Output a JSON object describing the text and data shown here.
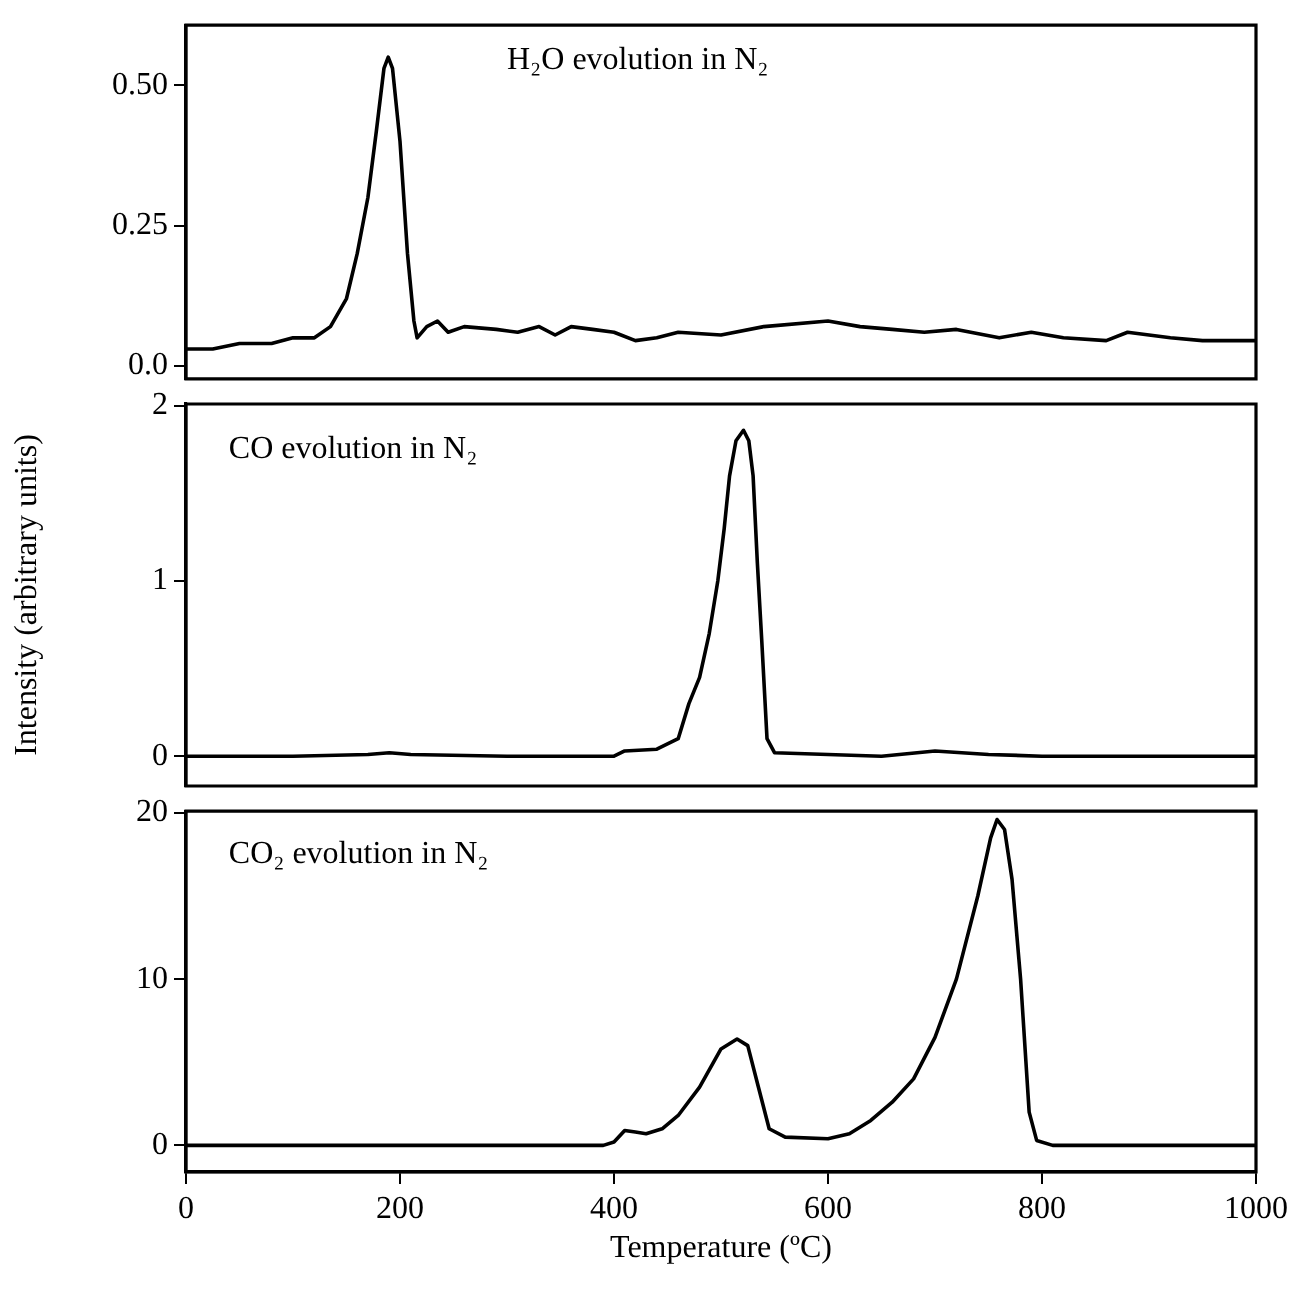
{
  "chart_data": [
    {
      "type": "line",
      "annotations": [
        "H₂O evolution in N₂"
      ],
      "marker": "none",
      "grid": false,
      "legend": false,
      "tick_labels": "y",
      "xlim": [
        0,
        1000
      ],
      "ylim": [
        -0.023,
        0.607
      ],
      "yticks": [
        {
          "value": 0,
          "label": "0.0"
        },
        0.25,
        {
          "value": 0.5,
          "label": "0.50"
        }
      ],
      "series": [
        {
          "color": "#000000",
          "x": [
            0,
            25,
            50,
            80,
            100,
            120,
            135,
            150,
            160,
            170,
            178,
            185,
            189,
            193,
            200,
            207,
            213,
            216,
            225,
            235,
            245,
            260,
            290,
            310,
            330,
            345,
            360,
            380,
            400,
            420,
            440,
            460,
            500,
            540,
            600,
            630,
            660,
            690,
            720,
            760,
            790,
            820,
            860,
            880,
            920,
            950,
            1000
          ],
          "values": [
            0.03,
            0.03,
            0.04,
            0.04,
            0.05,
            0.05,
            0.07,
            0.12,
            0.2,
            0.3,
            0.42,
            0.53,
            0.55,
            0.53,
            0.4,
            0.2,
            0.08,
            0.05,
            0.07,
            0.08,
            0.06,
            0.07,
            0.065,
            0.06,
            0.07,
            0.055,
            0.07,
            0.065,
            0.06,
            0.045,
            0.05,
            0.06,
            0.055,
            0.07,
            0.08,
            0.07,
            0.065,
            0.06,
            0.065,
            0.05,
            0.06,
            0.05,
            0.045,
            0.06,
            0.05,
            0.045,
            0.045
          ]
        }
      ]
    },
    {
      "type": "line",
      "annotations": [
        "CO evolution in N₂"
      ],
      "ylabel": "Intensity (arbitrary units)",
      "marker": "none",
      "grid": false,
      "legend": false,
      "tick_labels": "y",
      "xlim": [
        0,
        1000
      ],
      "ylim": [
        -0.17,
        2.01
      ],
      "yticks": [
        0,
        1,
        2
      ],
      "series": [
        {
          "color": "#000000",
          "x": [
            0,
            100,
            170,
            190,
            210,
            300,
            400,
            410,
            440,
            460,
            470,
            480,
            489,
            497,
            503,
            508,
            514,
            521,
            526,
            530,
            534,
            538,
            543,
            550,
            650,
            700,
            750,
            800,
            1000
          ],
          "values": [
            0,
            0,
            0.01,
            0.02,
            0.01,
            0,
            0,
            0.03,
            0.04,
            0.1,
            0.3,
            0.45,
            0.7,
            1.0,
            1.3,
            1.6,
            1.8,
            1.86,
            1.8,
            1.6,
            1.1,
            0.67,
            0.1,
            0.02,
            0,
            0.03,
            0.01,
            0,
            0
          ]
        }
      ]
    },
    {
      "type": "line",
      "annotations": [
        "CO₂ evolution in N₂"
      ],
      "xlabel": "Temperature (ºC)",
      "marker": "none",
      "grid": false,
      "legend": false,
      "xlim": [
        0,
        1000
      ],
      "xticks": [
        0,
        200,
        400,
        600,
        800,
        1000
      ],
      "ylim": [
        -1.6,
        20.1
      ],
      "yticks": [
        0,
        10,
        20
      ],
      "series": [
        {
          "color": "#000000",
          "x": [
            0,
            200,
            390,
            400,
            410,
            420,
            430,
            445,
            460,
            480,
            500,
            515,
            525,
            535,
            545,
            560,
            600,
            620,
            640,
            660,
            680,
            700,
            720,
            740,
            752,
            758,
            765,
            772,
            780,
            788,
            795,
            810,
            1000
          ],
          "values": [
            0,
            0,
            0,
            0.2,
            0.9,
            0.8,
            0.7,
            1.0,
            1.8,
            3.5,
            5.8,
            6.4,
            6.0,
            3.5,
            1.0,
            0.5,
            0.4,
            0.7,
            1.5,
            2.6,
            4.0,
            6.5,
            10,
            15,
            18.5,
            19.6,
            19.0,
            16,
            10,
            2,
            0.3,
            0,
            0
          ]
        }
      ]
    }
  ]
}
